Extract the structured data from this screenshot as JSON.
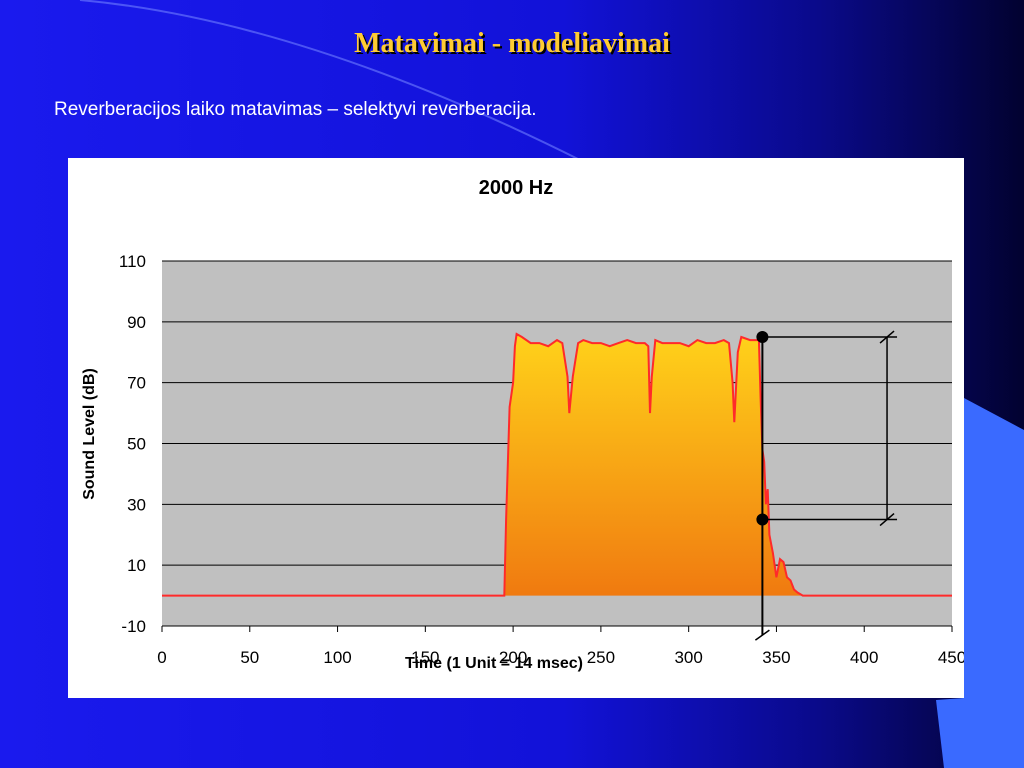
{
  "slide": {
    "title": "Matavimai - modeliavimai",
    "subtitle": "Reverberacijos laiko matavimas – selektyvi reverberacija."
  },
  "colors": {
    "background": "#1212d8",
    "title": "#ffcc33",
    "plot_area": "#c0c0c0",
    "signal_line": "#ff2a2a",
    "fill_top": "#ffd21a",
    "fill_bottom": "#f07a10"
  },
  "chart_data": {
    "type": "area",
    "title": "2000 Hz",
    "xlabel": "Time (1 Unit = 14 msec)",
    "ylabel": "Sound Level (dB)",
    "xlim": [
      0,
      450
    ],
    "ylim": [
      -10,
      110
    ],
    "x_ticks": [
      "0",
      "50",
      "100",
      "150",
      "200",
      "250",
      "300",
      "350",
      "400",
      "450"
    ],
    "y_ticks": [
      "110",
      "90",
      "70",
      "50",
      "30",
      "10",
      "-10"
    ],
    "grid": true,
    "legend": "none",
    "series": [
      {
        "x": [
          0,
          150,
          195,
          196,
          198,
          200,
          201,
          202,
          205,
          210,
          215,
          220,
          225,
          228,
          231,
          232,
          234,
          237,
          240,
          245,
          250,
          255,
          260,
          265,
          270,
          275,
          277,
          278,
          279,
          281,
          285,
          290,
          295,
          300,
          305,
          310,
          315,
          320,
          323,
          325,
          326,
          328,
          330,
          335,
          340,
          341,
          342,
          343,
          344,
          345,
          346,
          348,
          350,
          352,
          354,
          356,
          358,
          360,
          362,
          365,
          370,
          375,
          380,
          400,
          420,
          450
        ],
        "y": [
          0,
          0,
          0,
          25,
          62,
          70,
          82,
          86,
          85,
          83,
          83,
          82,
          84,
          83,
          72,
          60,
          72,
          83,
          84,
          83,
          83,
          82,
          83,
          84,
          83,
          83,
          82,
          60,
          72,
          84,
          83,
          83,
          83,
          82,
          84,
          83,
          83,
          84,
          83,
          70,
          57,
          80,
          85,
          84,
          84,
          65,
          48,
          44,
          30,
          35,
          20,
          14,
          6,
          12,
          11,
          6,
          5,
          2,
          1,
          0,
          0,
          0,
          0,
          0,
          0,
          0
        ]
      }
    ],
    "annotations": [
      {
        "type": "marker",
        "x": 342,
        "y": 85
      },
      {
        "type": "marker",
        "x": 342,
        "y": 25
      },
      {
        "type": "vertical_line",
        "x": 342,
        "y_from": -13,
        "y_to": 85
      },
      {
        "type": "bracket",
        "x_from": 342,
        "x_to": 413,
        "y_from": 25,
        "y_to": 85
      }
    ]
  }
}
